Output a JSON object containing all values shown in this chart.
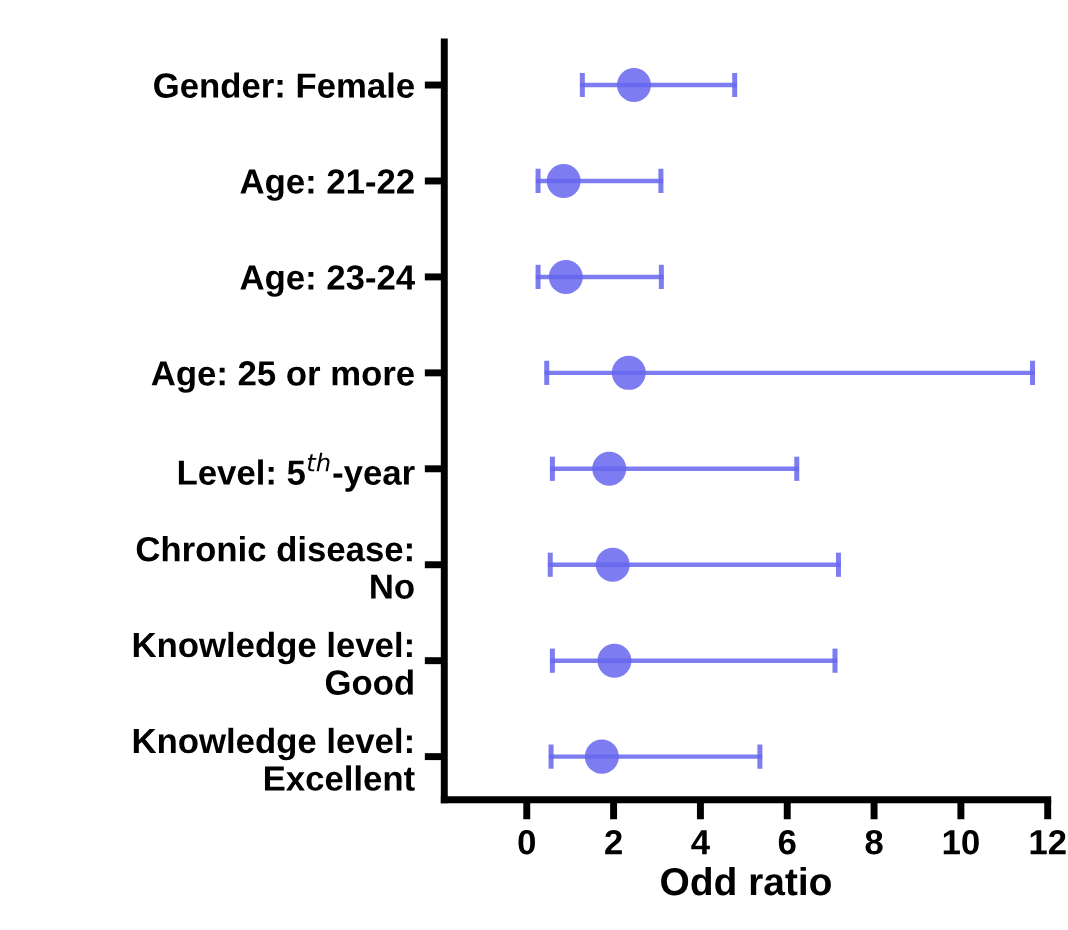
{
  "chart_data": {
    "type": "scatter",
    "orientation": "horizontal",
    "xlabel": "Odd ratio",
    "categories": [
      "Gender: Female",
      "Age: 21-22",
      "Age: 23-24",
      "Age: 25 or more",
      "Level: 5$^{th}$-year",
      "Chronic disease:\nNo",
      "Knowledge level:\nGood",
      "Knowledge level:\nExcellent"
    ],
    "series": [
      {
        "color": "#6666ee",
        "values": [
          2.47,
          0.85,
          0.9,
          2.35,
          1.9,
          1.98,
          2.02,
          1.73
        ],
        "errors": [
          [
            1.28,
            4.79
          ],
          [
            0.26,
            3.09
          ],
          [
            0.26,
            3.1
          ],
          [
            0.46,
            11.65
          ],
          [
            0.59,
            6.22
          ],
          [
            0.54,
            7.18
          ],
          [
            0.59,
            7.1
          ],
          [
            0.56,
            5.37
          ]
        ]
      }
    ],
    "xlim": [
      -1.9,
      12
    ],
    "xticks": [
      0,
      2,
      4,
      6,
      8,
      10,
      12
    ],
    "grid": false,
    "legend": false,
    "marker": "circle"
  }
}
